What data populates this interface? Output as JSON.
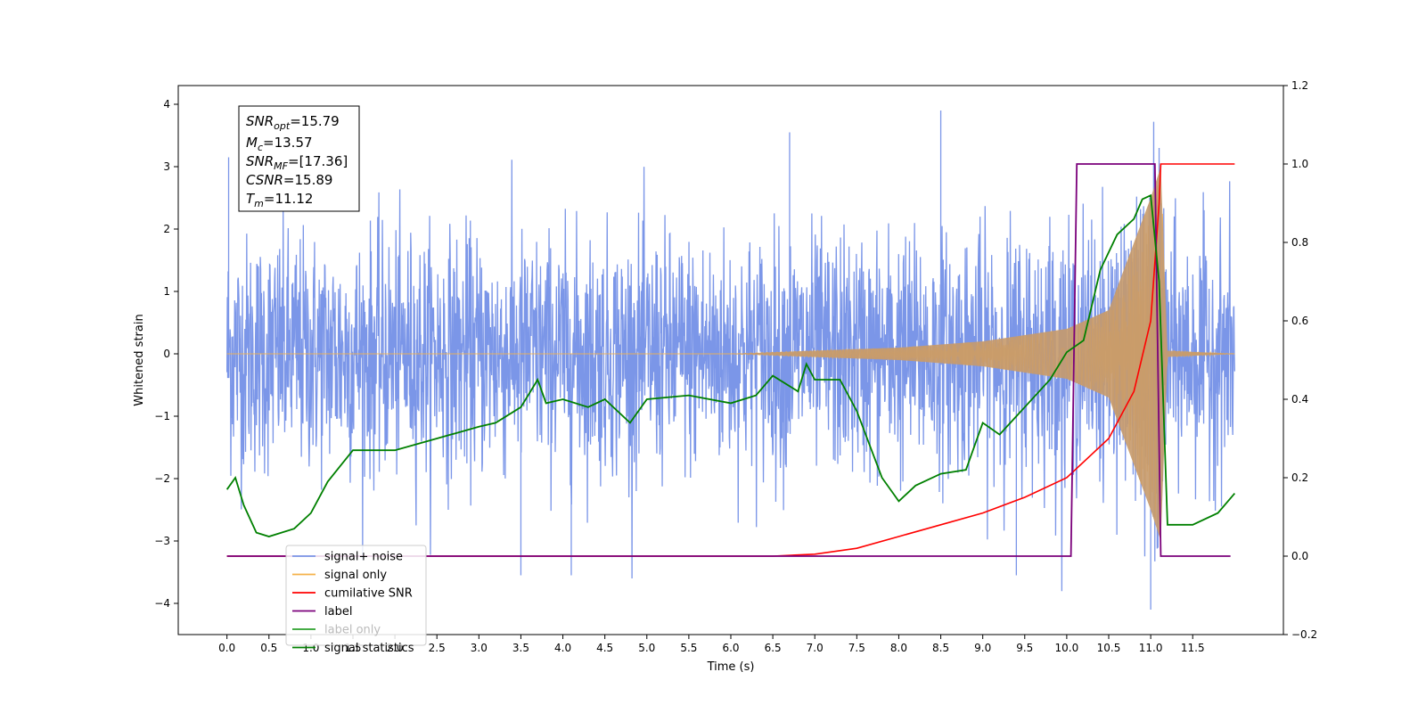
{
  "chart_data": {
    "type": "line",
    "xlabel": "Time (s)",
    "ylabel": "Whitened strain",
    "x_ticks": [
      0.0,
      0.5,
      1.0,
      1.5,
      2.0,
      2.5,
      3.0,
      3.5,
      4.0,
      4.5,
      5.0,
      5.5,
      6.0,
      6.5,
      7.0,
      7.5,
      8.0,
      8.5,
      9.0,
      9.5,
      10.0,
      10.5,
      11.0,
      11.5
    ],
    "xlim": [
      -0.58,
      12.58
    ],
    "ylim_left": [
      -4.5,
      4.3
    ],
    "y_ticks_left": [
      -4,
      -3,
      -2,
      -1,
      0,
      1,
      2,
      3,
      4
    ],
    "ylim_right": [
      -0.2,
      1.2
    ],
    "y_ticks_right": [
      -0.2,
      0.0,
      0.2,
      0.4,
      0.6,
      0.8,
      1.0,
      1.2
    ],
    "grid": false,
    "legend_position": "lower-left",
    "annotation_box": [
      "SNR_opt=15.79",
      "M_c=13.57",
      "SNR_MF=[17.36]",
      "CSNR=15.89",
      "T_m=11.12"
    ],
    "series": [
      {
        "name": "signal+ noise",
        "color": "#7b96e8",
        "axis": "left",
        "style": "noise",
        "x_range": [
          0.0,
          12.0
        ],
        "envelope_low": -2.0,
        "envelope_high": 2.0,
        "notable_peaks": [
          [
            0.02,
            3.15
          ],
          [
            3.5,
            -3.55
          ],
          [
            4.1,
            -3.55
          ],
          [
            6.7,
            3.55
          ],
          [
            8.5,
            3.9
          ],
          [
            9.4,
            -3.55
          ],
          [
            11.0,
            -4.1
          ],
          [
            11.1,
            3.3
          ]
        ]
      },
      {
        "name": "signal only",
        "color": "#f5b24a",
        "axis": "left",
        "style": "chirp",
        "points": [
          [
            0.0,
            0.0
          ],
          [
            6.0,
            0.0
          ],
          [
            7.0,
            0.05
          ],
          [
            8.0,
            0.1
          ],
          [
            9.0,
            0.2
          ],
          [
            10.0,
            0.4
          ],
          [
            10.5,
            0.7
          ],
          [
            11.0,
            2.5
          ],
          [
            11.12,
            3.0
          ],
          [
            11.2,
            0.05
          ],
          [
            12.0,
            0.0
          ]
        ]
      },
      {
        "name": "cumilative SNR",
        "color": "#ff0000",
        "axis": "right",
        "points": [
          [
            0.0,
            0.0
          ],
          [
            6.5,
            0.0
          ],
          [
            7.0,
            0.005
          ],
          [
            7.5,
            0.02
          ],
          [
            8.0,
            0.05
          ],
          [
            8.5,
            0.08
          ],
          [
            9.0,
            0.11
          ],
          [
            9.5,
            0.15
          ],
          [
            10.0,
            0.2
          ],
          [
            10.5,
            0.3
          ],
          [
            10.8,
            0.42
          ],
          [
            11.0,
            0.6
          ],
          [
            11.1,
            0.9
          ],
          [
            11.12,
            1.0
          ],
          [
            12.0,
            1.0
          ]
        ]
      },
      {
        "name": "label",
        "color": "#7b007b",
        "axis": "right",
        "points": [
          [
            0.0,
            0.0
          ],
          [
            10.05,
            0.0
          ],
          [
            10.12,
            1.0
          ],
          [
            11.05,
            1.0
          ],
          [
            11.12,
            0.0
          ],
          [
            11.95,
            0.0
          ]
        ]
      },
      {
        "name": "label only",
        "color": "#2ca02c",
        "axis": "right",
        "points": []
      },
      {
        "name": "signal statistics",
        "color": "#008000",
        "axis": "right",
        "points": [
          [
            0.0,
            0.17
          ],
          [
            0.1,
            0.2
          ],
          [
            0.2,
            0.13
          ],
          [
            0.35,
            0.06
          ],
          [
            0.5,
            0.05
          ],
          [
            0.8,
            0.07
          ],
          [
            1.0,
            0.11
          ],
          [
            1.2,
            0.19
          ],
          [
            1.5,
            0.27
          ],
          [
            2.0,
            0.27
          ],
          [
            2.5,
            0.3
          ],
          [
            3.0,
            0.33
          ],
          [
            3.2,
            0.34
          ],
          [
            3.5,
            0.38
          ],
          [
            3.7,
            0.45
          ],
          [
            3.8,
            0.39
          ],
          [
            4.0,
            0.4
          ],
          [
            4.3,
            0.38
          ],
          [
            4.5,
            0.4
          ],
          [
            4.8,
            0.34
          ],
          [
            5.0,
            0.4
          ],
          [
            5.5,
            0.41
          ],
          [
            6.0,
            0.39
          ],
          [
            6.3,
            0.41
          ],
          [
            6.5,
            0.46
          ],
          [
            6.8,
            0.42
          ],
          [
            6.9,
            0.49
          ],
          [
            7.0,
            0.45
          ],
          [
            7.3,
            0.45
          ],
          [
            7.5,
            0.37
          ],
          [
            7.8,
            0.2
          ],
          [
            8.0,
            0.14
          ],
          [
            8.2,
            0.18
          ],
          [
            8.5,
            0.21
          ],
          [
            8.8,
            0.22
          ],
          [
            9.0,
            0.34
          ],
          [
            9.2,
            0.31
          ],
          [
            9.5,
            0.38
          ],
          [
            9.8,
            0.45
          ],
          [
            10.0,
            0.52
          ],
          [
            10.2,
            0.55
          ],
          [
            10.4,
            0.73
          ],
          [
            10.6,
            0.82
          ],
          [
            10.8,
            0.86
          ],
          [
            10.9,
            0.91
          ],
          [
            11.0,
            0.92
          ],
          [
            11.1,
            0.7
          ],
          [
            11.2,
            0.08
          ],
          [
            11.5,
            0.08
          ],
          [
            11.8,
            0.11
          ],
          [
            12.0,
            0.16
          ]
        ]
      }
    ]
  }
}
